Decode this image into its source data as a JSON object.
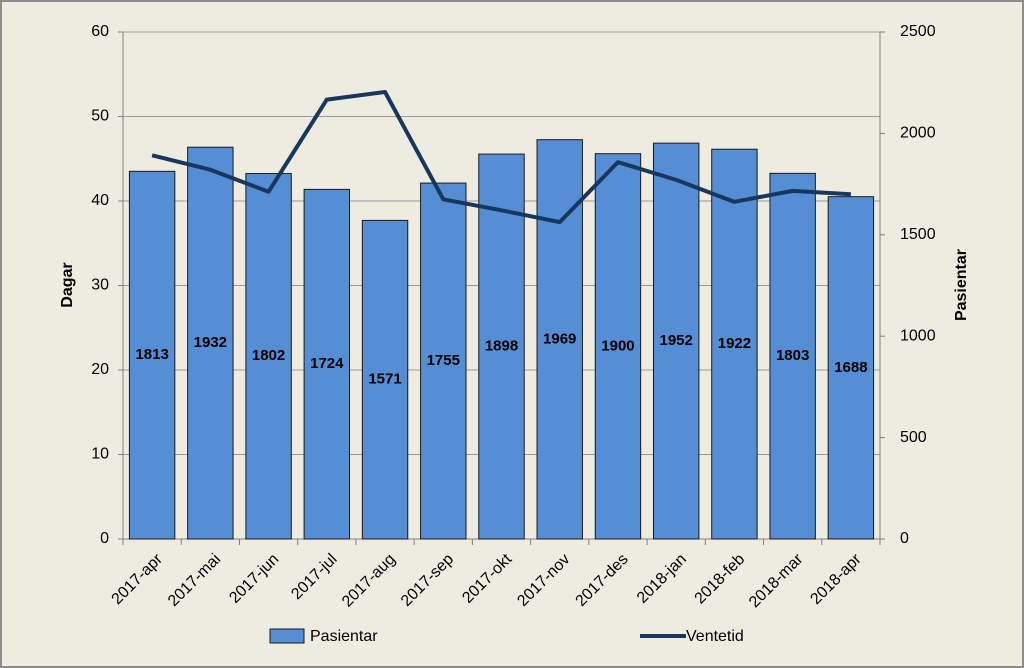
{
  "chart_data": {
    "type": "bar",
    "categories": [
      "2017-apr",
      "2017-mai",
      "2017-jun",
      "2017-jul",
      "2017-aug",
      "2017-sep",
      "2017-okt",
      "2017-nov",
      "2017-des",
      "2018-jan",
      "2018-feb",
      "2018-mar",
      "2018-apr"
    ],
    "y_label": "Dagar",
    "y2_label": "Pasientar",
    "ylim": [
      0,
      60
    ],
    "yticks": [
      0,
      10,
      20,
      30,
      40,
      50,
      60
    ],
    "y2lim": [
      0,
      2500
    ],
    "y2ticks": [
      0,
      500,
      1000,
      1500,
      2000,
      2500
    ],
    "grid": true,
    "series": [
      {
        "name": "Pasientar",
        "type": "bar",
        "axis": "y2",
        "color": "#558ed5",
        "values": [
          1813,
          1932,
          1802,
          1724,
          1571,
          1755,
          1898,
          1969,
          1900,
          1952,
          1922,
          1803,
          1688
        ]
      },
      {
        "name": "Ventetid",
        "type": "line",
        "axis": "y",
        "color": "#17375e",
        "values": [
          45.4,
          43.7,
          41.1,
          52.0,
          52.9,
          40.2,
          38.9,
          37.5,
          44.6,
          42.5,
          39.9,
          41.2,
          40.8
        ]
      }
    ]
  }
}
